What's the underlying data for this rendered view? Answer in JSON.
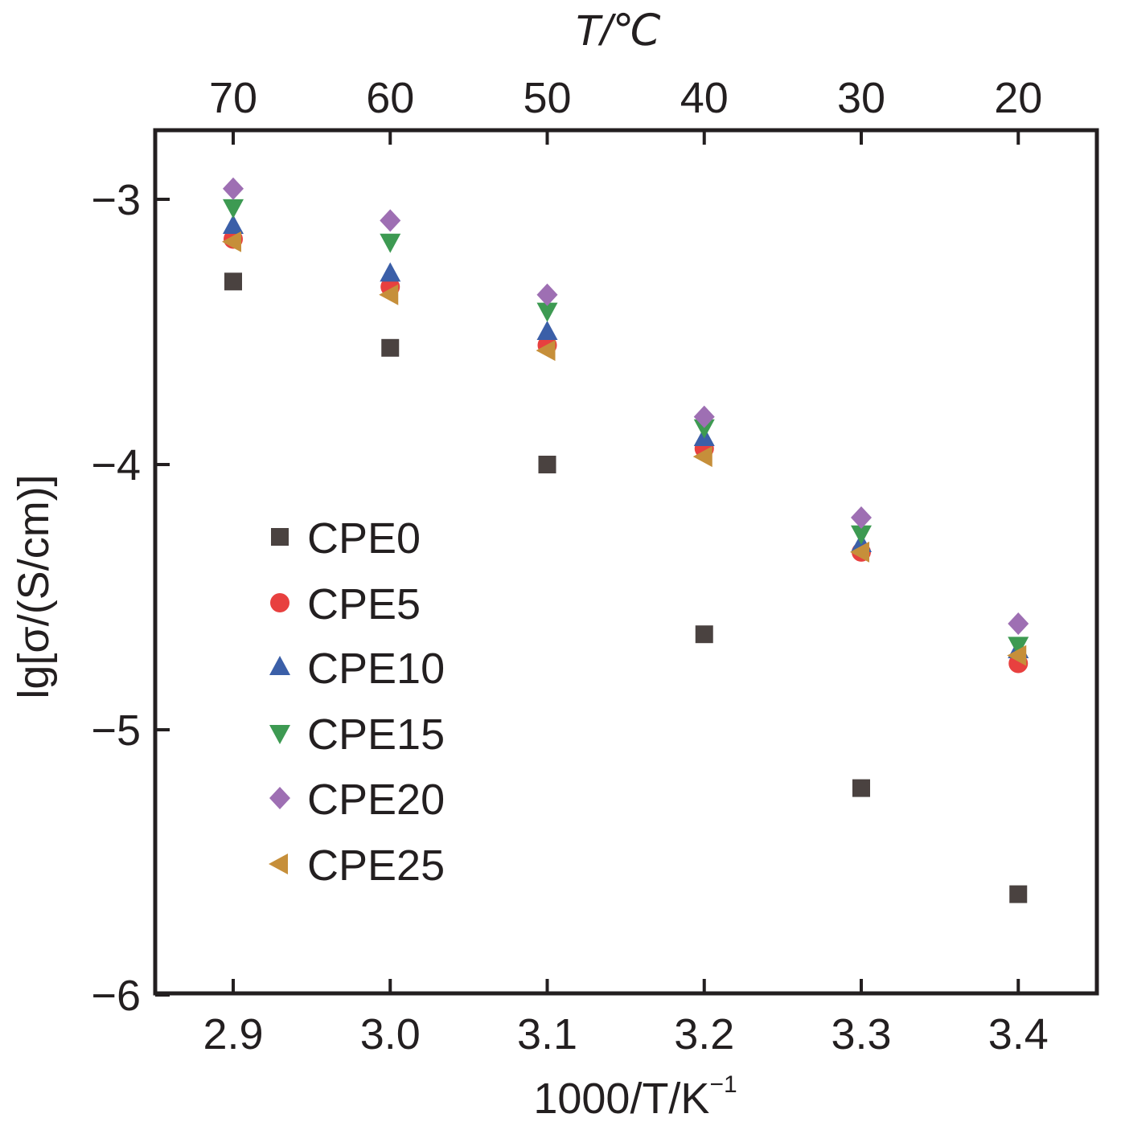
{
  "chart_data": {
    "type": "scatter",
    "xlabel": "1000/T/K",
    "xlabel_sup": "−1",
    "ylabel": "lg[σ/(S/cm)]",
    "top_axis_title": "T/℃",
    "x_ticks": [
      "2.9",
      "3.0",
      "3.1",
      "3.2",
      "3.3",
      "3.4"
    ],
    "x_tick_values": [
      2.9,
      3.0,
      3.1,
      3.2,
      3.3,
      3.4
    ],
    "top_ticks": [
      "70",
      "60",
      "50",
      "40",
      "30",
      "20"
    ],
    "y_ticks": [
      "−3",
      "−4",
      "−5",
      "−6"
    ],
    "y_tick_values": [
      -3,
      -4,
      -5,
      -6
    ],
    "xlim": [
      2.85,
      3.45
    ],
    "ylim": [
      -6,
      -2.75
    ],
    "legend_position": "left-center",
    "x": [
      2.9,
      3.0,
      3.1,
      3.2,
      3.3,
      3.4
    ],
    "series": [
      {
        "name": "CPE0",
        "marker": "square",
        "color": "#4a4240",
        "values": [
          -3.31,
          -3.56,
          -4.0,
          -4.64,
          -5.22,
          -5.62
        ]
      },
      {
        "name": "CPE5",
        "marker": "circle",
        "color": "#e8403f",
        "values": [
          -3.15,
          -3.33,
          -3.55,
          -3.94,
          -4.33,
          -4.75
        ]
      },
      {
        "name": "CPE10",
        "marker": "triangle-up",
        "color": "#3b5fa8",
        "values": [
          -3.1,
          -3.28,
          -3.5,
          -3.9,
          -4.3,
          -4.7
        ]
      },
      {
        "name": "CPE15",
        "marker": "triangle-down",
        "color": "#3d9a52",
        "values": [
          -3.03,
          -3.16,
          -3.42,
          -3.86,
          -4.26,
          -4.68
        ]
      },
      {
        "name": "CPE20",
        "marker": "diamond",
        "color": "#9e6fb3",
        "values": [
          -2.96,
          -3.08,
          -3.36,
          -3.82,
          -4.2,
          -4.6
        ]
      },
      {
        "name": "CPE25",
        "marker": "triangle-left",
        "color": "#c68f3a",
        "values": [
          -3.16,
          -3.36,
          -3.57,
          -3.97,
          -4.33,
          -4.72
        ]
      }
    ]
  }
}
